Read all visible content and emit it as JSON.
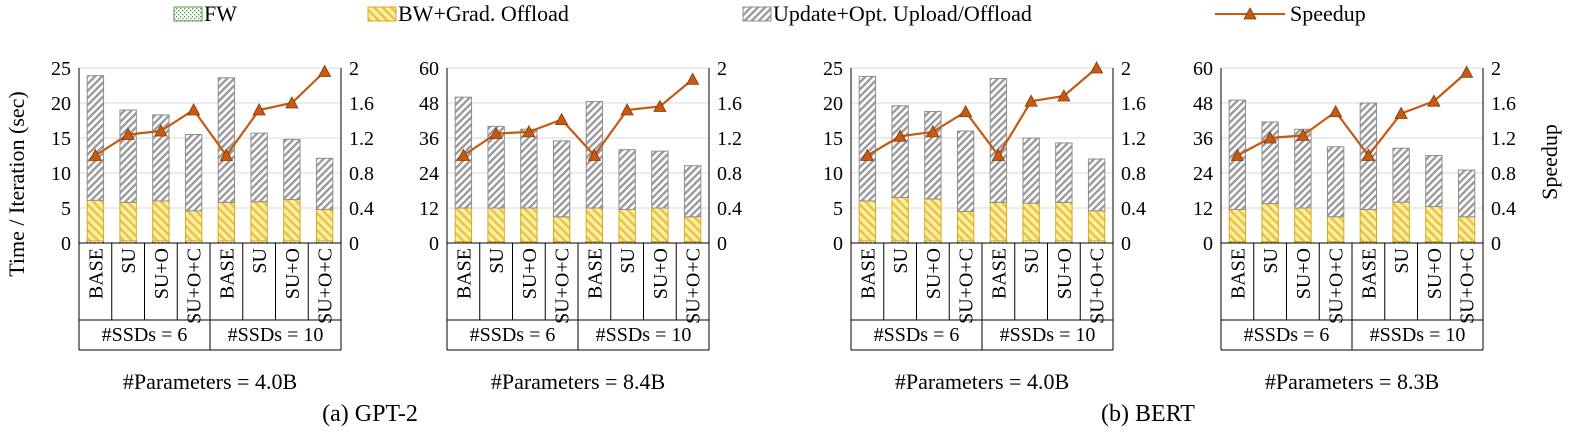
{
  "legend": {
    "items": [
      {
        "label": "FW",
        "kind": "fw"
      },
      {
        "label": "BW+Grad. Offload",
        "kind": "bw"
      },
      {
        "label": "Update+Opt. Upload/Offload",
        "kind": "upd"
      },
      {
        "label": "Speedup",
        "kind": "line"
      }
    ]
  },
  "y_left_label": "Time / Iteration (sec)",
  "y_right_label": "Speedup",
  "colors": {
    "fw": "#4d9b3c",
    "bw_fill": "#f6e27a",
    "bw_stroke": "#d8a91e",
    "upd_stroke": "#8e8e8e",
    "line": "#c55a11"
  },
  "groups": [
    {
      "caption": "(a)  GPT-2"
    },
    {
      "caption": "(b) BERT"
    }
  ],
  "chart_data": [
    {
      "type": "bar",
      "stacked": true,
      "caption": "#Parameters = 4.0B",
      "categories": [
        "BASE",
        "SU",
        "SU+O",
        "SU+O+C",
        "BASE",
        "SU",
        "SU+O",
        "SU+O+C"
      ],
      "category_groups": [
        {
          "label": "#SSDs = 6",
          "span": 4
        },
        {
          "label": "#SSDs = 10",
          "span": 4
        }
      ],
      "ylim": [
        0,
        25
      ],
      "yticks": [
        "0",
        "5",
        "10",
        "15",
        "20",
        "25"
      ],
      "y2lim": [
        0,
        2
      ],
      "y2ticks": [
        "0",
        "0.4",
        "0.8",
        "1.2",
        "1.6",
        "2"
      ],
      "series": [
        {
          "name": "FW",
          "values": [
            0.3,
            0.3,
            0.3,
            0.3,
            0.3,
            0.3,
            0.3,
            0.3
          ]
        },
        {
          "name": "BW+Grad. Offload",
          "values": [
            5.8,
            5.5,
            5.7,
            4.3,
            5.5,
            5.6,
            5.9,
            4.5
          ]
        },
        {
          "name": "Update+Opt. Upload/Offload",
          "values": [
            17.8,
            13.2,
            12.3,
            10.9,
            17.8,
            9.8,
            8.6,
            7.3
          ]
        },
        {
          "name": "Speedup",
          "values": [
            1.0,
            1.24,
            1.28,
            1.52,
            1.0,
            1.52,
            1.6,
            1.96
          ],
          "axis": "right"
        }
      ]
    },
    {
      "type": "bar",
      "stacked": true,
      "caption": "#Parameters = 8.4B",
      "categories": [
        "BASE",
        "SU",
        "SU+O",
        "SU+O+C",
        "BASE",
        "SU",
        "SU+O",
        "SU+O+C"
      ],
      "category_groups": [
        {
          "label": "#SSDs = 6",
          "span": 4
        },
        {
          "label": "#SSDs = 10",
          "span": 4
        }
      ],
      "ylim": [
        0,
        60
      ],
      "yticks": [
        "0",
        "12",
        "24",
        "36",
        "48",
        "60"
      ],
      "y2lim": [
        0,
        2
      ],
      "y2ticks": [
        "0",
        "0.4",
        "0.8",
        "1.2",
        "1.6",
        "2"
      ],
      "series": [
        {
          "name": "FW",
          "values": [
            0.5,
            0.5,
            0.5,
            0.5,
            0.5,
            0.5,
            0.5,
            0.5
          ]
        },
        {
          "name": "BW+Grad. Offload",
          "values": [
            11.5,
            11.5,
            11.5,
            8.5,
            11.5,
            11.0,
            11.5,
            8.5
          ]
        },
        {
          "name": "Update+Opt. Upload/Offload",
          "values": [
            38.0,
            28.0,
            27.0,
            26.0,
            36.5,
            20.5,
            19.5,
            17.5
          ]
        },
        {
          "name": "Speedup",
          "values": [
            1.0,
            1.25,
            1.27,
            1.41,
            1.0,
            1.52,
            1.56,
            1.87
          ],
          "axis": "right"
        }
      ]
    },
    {
      "type": "bar",
      "stacked": true,
      "caption": "#Parameters = 4.0B",
      "categories": [
        "BASE",
        "SU",
        "SU+O",
        "SU+O+C",
        "BASE",
        "SU",
        "SU+O",
        "SU+O+C"
      ],
      "category_groups": [
        {
          "label": "#SSDs = 6",
          "span": 4
        },
        {
          "label": "#SSDs = 10",
          "span": 4
        }
      ],
      "ylim": [
        0,
        25
      ],
      "yticks": [
        "0",
        "5",
        "10",
        "15",
        "20",
        "25"
      ],
      "y2lim": [
        0,
        2
      ],
      "y2ticks": [
        "0",
        "0.4",
        "0.8",
        "1.2",
        "1.6",
        "2"
      ],
      "series": [
        {
          "name": "FW",
          "values": [
            0.3,
            0.3,
            0.3,
            0.3,
            0.3,
            0.3,
            0.3,
            0.3
          ]
        },
        {
          "name": "BW+Grad. Offload",
          "values": [
            5.7,
            6.2,
            6.0,
            4.2,
            5.5,
            5.4,
            5.5,
            4.3
          ]
        },
        {
          "name": "Update+Opt. Upload/Offload",
          "values": [
            17.8,
            13.1,
            12.5,
            11.5,
            17.7,
            9.3,
            8.5,
            7.4
          ]
        },
        {
          "name": "Speedup",
          "values": [
            1.0,
            1.22,
            1.27,
            1.5,
            1.0,
            1.62,
            1.68,
            2.0
          ],
          "axis": "right"
        }
      ]
    },
    {
      "type": "bar",
      "stacked": true,
      "caption": "#Parameters = 8.3B",
      "categories": [
        "BASE",
        "SU",
        "SU+O",
        "SU+O+C",
        "BASE",
        "SU",
        "SU+O",
        "SU+O+C"
      ],
      "category_groups": [
        {
          "label": "#SSDs = 6",
          "span": 4
        },
        {
          "label": "#SSDs = 10",
          "span": 4
        }
      ],
      "ylim": [
        0,
        60
      ],
      "yticks": [
        "0",
        "12",
        "24",
        "36",
        "48",
        "60"
      ],
      "y2lim": [
        0,
        2
      ],
      "y2ticks": [
        "0",
        "0.4",
        "0.8",
        "1.2",
        "1.6",
        "2"
      ],
      "series": [
        {
          "name": "FW",
          "values": [
            0.5,
            0.5,
            0.5,
            0.5,
            0.5,
            0.5,
            0.5,
            0.5
          ]
        },
        {
          "name": "BW+Grad. Offload",
          "values": [
            11.0,
            13.0,
            11.5,
            8.5,
            11.0,
            13.5,
            12.0,
            8.5
          ]
        },
        {
          "name": "Update+Opt. Upload/Offload",
          "values": [
            37.5,
            28.0,
            27.0,
            24.0,
            36.5,
            18.5,
            17.5,
            16.0
          ]
        },
        {
          "name": "Speedup",
          "values": [
            1.0,
            1.2,
            1.23,
            1.5,
            1.0,
            1.48,
            1.62,
            1.95
          ],
          "axis": "right"
        }
      ]
    }
  ]
}
